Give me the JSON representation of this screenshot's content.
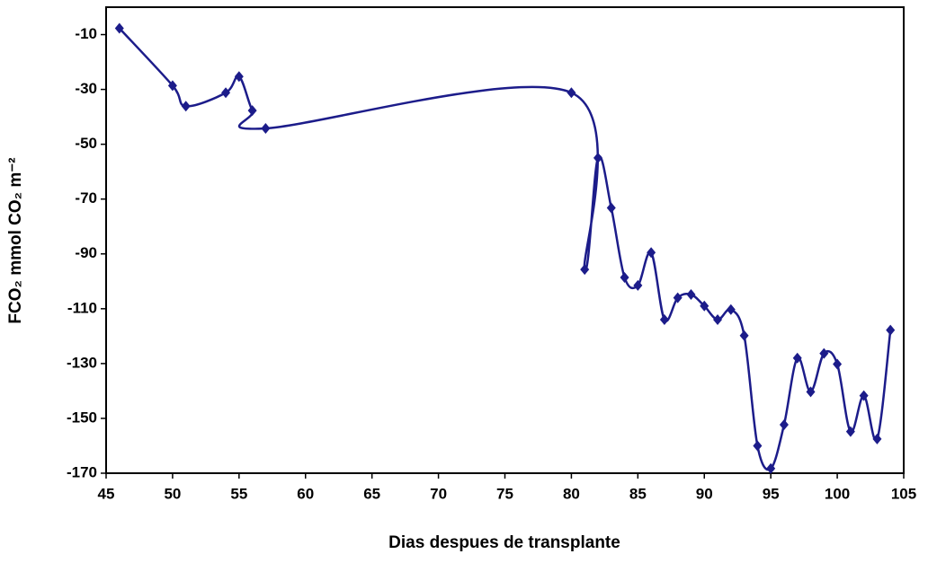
{
  "chart_data": {
    "type": "line",
    "x_label": "Dias despues de transplante",
    "y_label": "FCO₂ mmol CO₂ m⁻²",
    "x": [
      46,
      50,
      51,
      54,
      55,
      56,
      57,
      80,
      81,
      82,
      83,
      84,
      85,
      86,
      87,
      88,
      89,
      90,
      91,
      92,
      93,
      94,
      95,
      96,
      97,
      98,
      99,
      100,
      101,
      102,
      103,
      104
    ],
    "series": [
      {
        "color": "#1c1c8a",
        "values": [
          -7.7,
          -28.6,
          -36.1,
          -31.2,
          -25.3,
          -37.7,
          -44.2,
          -31.2,
          -95.7,
          -55,
          -73.2,
          -98.6,
          -101.5,
          -89.5,
          -114,
          -106,
          -104.8,
          -109,
          -114,
          -110.3,
          -119.8,
          -160,
          -168.3,
          -152.3,
          -128,
          -140.3,
          -126.3,
          -130.2,
          -154.8,
          -141.7,
          -157.5,
          -117.8
        ]
      }
    ],
    "xlim": [
      45,
      105
    ],
    "xticks": [
      45,
      50,
      55,
      60,
      65,
      70,
      75,
      80,
      85,
      90,
      95,
      100,
      105
    ],
    "ylim": [
      -170,
      0
    ],
    "yticks": [
      -170,
      -150,
      -130,
      -110,
      -90,
      -70,
      -50,
      -30,
      -10
    ]
  }
}
